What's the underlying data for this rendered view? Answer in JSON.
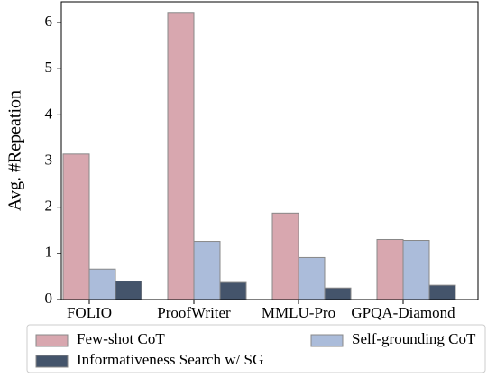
{
  "chart_data": {
    "type": "bar",
    "y_label": "Avg. #Repeation",
    "categories": [
      "FOLIO",
      "ProofWriter",
      "MMLU-Pro",
      "GPQA-Diamond"
    ],
    "series": [
      {
        "name": "Few-shot CoT",
        "color": "#d8a7af",
        "values": [
          3.15,
          6.22,
          1.87,
          1.3
        ]
      },
      {
        "name": "Self-grounding CoT",
        "color": "#abbcda",
        "values": [
          0.66,
          1.26,
          0.91,
          1.28
        ]
      },
      {
        "name": "Informativeness Search w/ SG",
        "color": "#44546b",
        "values": [
          0.4,
          0.37,
          0.25,
          0.31
        ]
      }
    ],
    "ylim": [
      0,
      6.45
    ],
    "yticks": [
      0,
      1,
      2,
      3,
      4,
      5,
      6
    ],
    "grid": false,
    "legend": "below"
  }
}
